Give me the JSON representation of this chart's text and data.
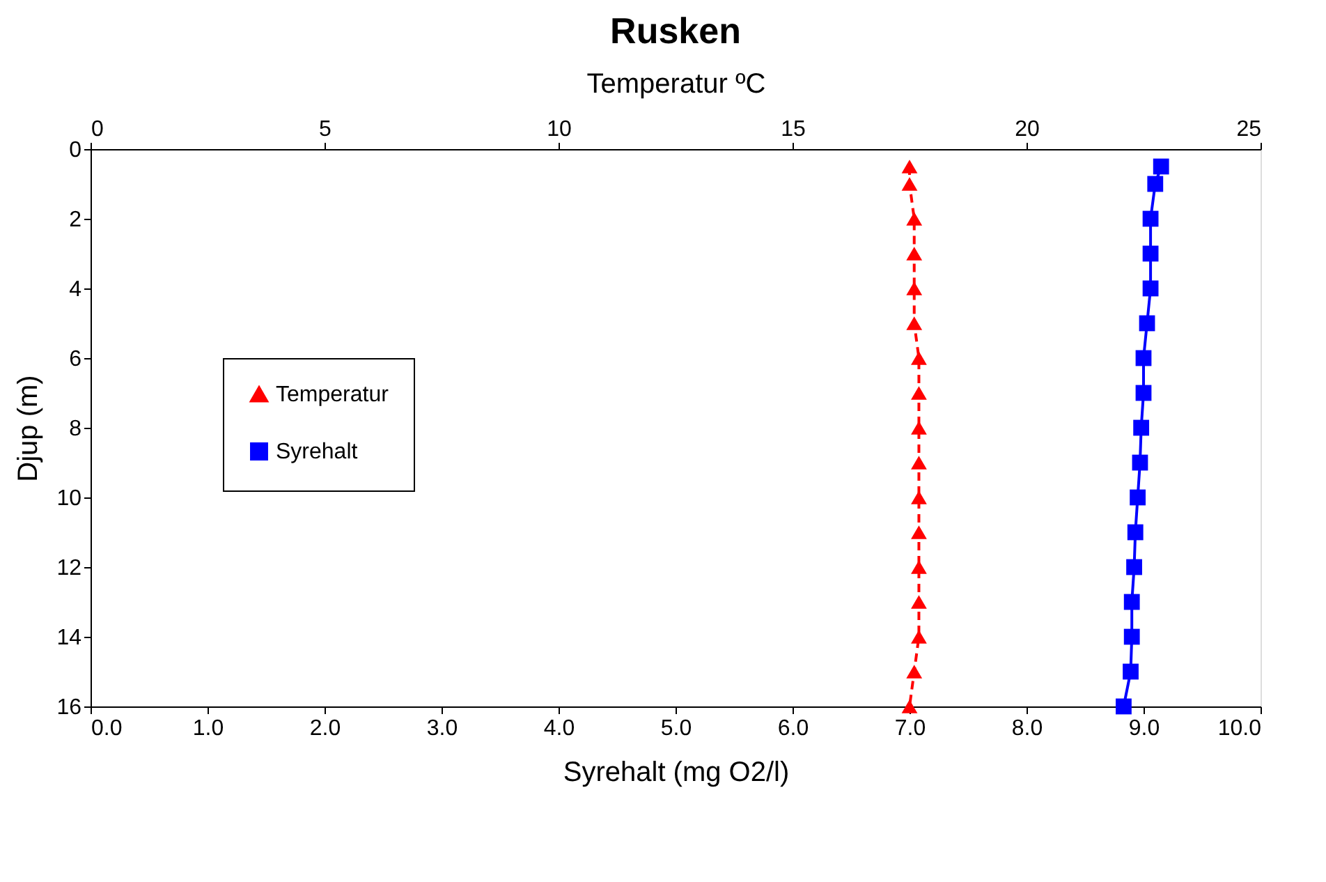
{
  "chart_data": {
    "type": "line",
    "title": "Rusken",
    "xlabel": "Syrehalt (mg O2/l)",
    "x2label": "Temperatur ºC",
    "ylabel": "Djup (m)",
    "xlim": [
      0,
      10
    ],
    "xticks": [
      {
        "value": 0,
        "label": "0.0"
      },
      {
        "value": 1,
        "label": "1.0"
      },
      {
        "value": 2,
        "label": "2.0"
      },
      {
        "value": 3,
        "label": "3.0"
      },
      {
        "value": 4,
        "label": "4.0"
      },
      {
        "value": 5,
        "label": "5.0"
      },
      {
        "value": 6,
        "label": "6.0"
      },
      {
        "value": 7,
        "label": "7.0"
      },
      {
        "value": 8,
        "label": "8.0"
      },
      {
        "value": 9,
        "label": "9.0"
      },
      {
        "value": 10,
        "label": "10.0"
      }
    ],
    "x2lim": [
      0,
      25
    ],
    "x2ticks": [
      0,
      5,
      10,
      15,
      20,
      25
    ],
    "ylim": [
      16,
      0
    ],
    "yticks": [
      0,
      2,
      4,
      6,
      8,
      10,
      12,
      14,
      16
    ],
    "grid": false,
    "legend": "left",
    "series": [
      {
        "name": "Temperatur",
        "color": "#ff0000",
        "axis": "x2",
        "marker": "triangle",
        "line_style": "dashed",
        "x": [
          17.5,
          17.5,
          17.6,
          17.6,
          17.6,
          17.6,
          17.7,
          17.7,
          17.7,
          17.7,
          17.7,
          17.7,
          17.7,
          17.7,
          17.7,
          17.6,
          17.5
        ],
        "values": [
          0.5,
          1,
          2,
          3,
          4,
          5,
          6,
          7,
          8,
          9,
          10,
          11,
          12,
          13,
          14,
          15,
          16
        ]
      },
      {
        "name": "Syrehalt",
        "color": "#0000ff",
        "marker": "square",
        "line_style": "solid",
        "x": [
          9.15,
          9.1,
          9.06,
          9.06,
          9.06,
          9.03,
          9.0,
          9.0,
          8.98,
          8.97,
          8.95,
          8.93,
          8.92,
          8.9,
          8.9,
          8.89,
          8.83
        ],
        "values": [
          0.5,
          1,
          2,
          3,
          4,
          5,
          6,
          7,
          8,
          9,
          10,
          11,
          12,
          13,
          14,
          15,
          16
        ]
      }
    ]
  }
}
